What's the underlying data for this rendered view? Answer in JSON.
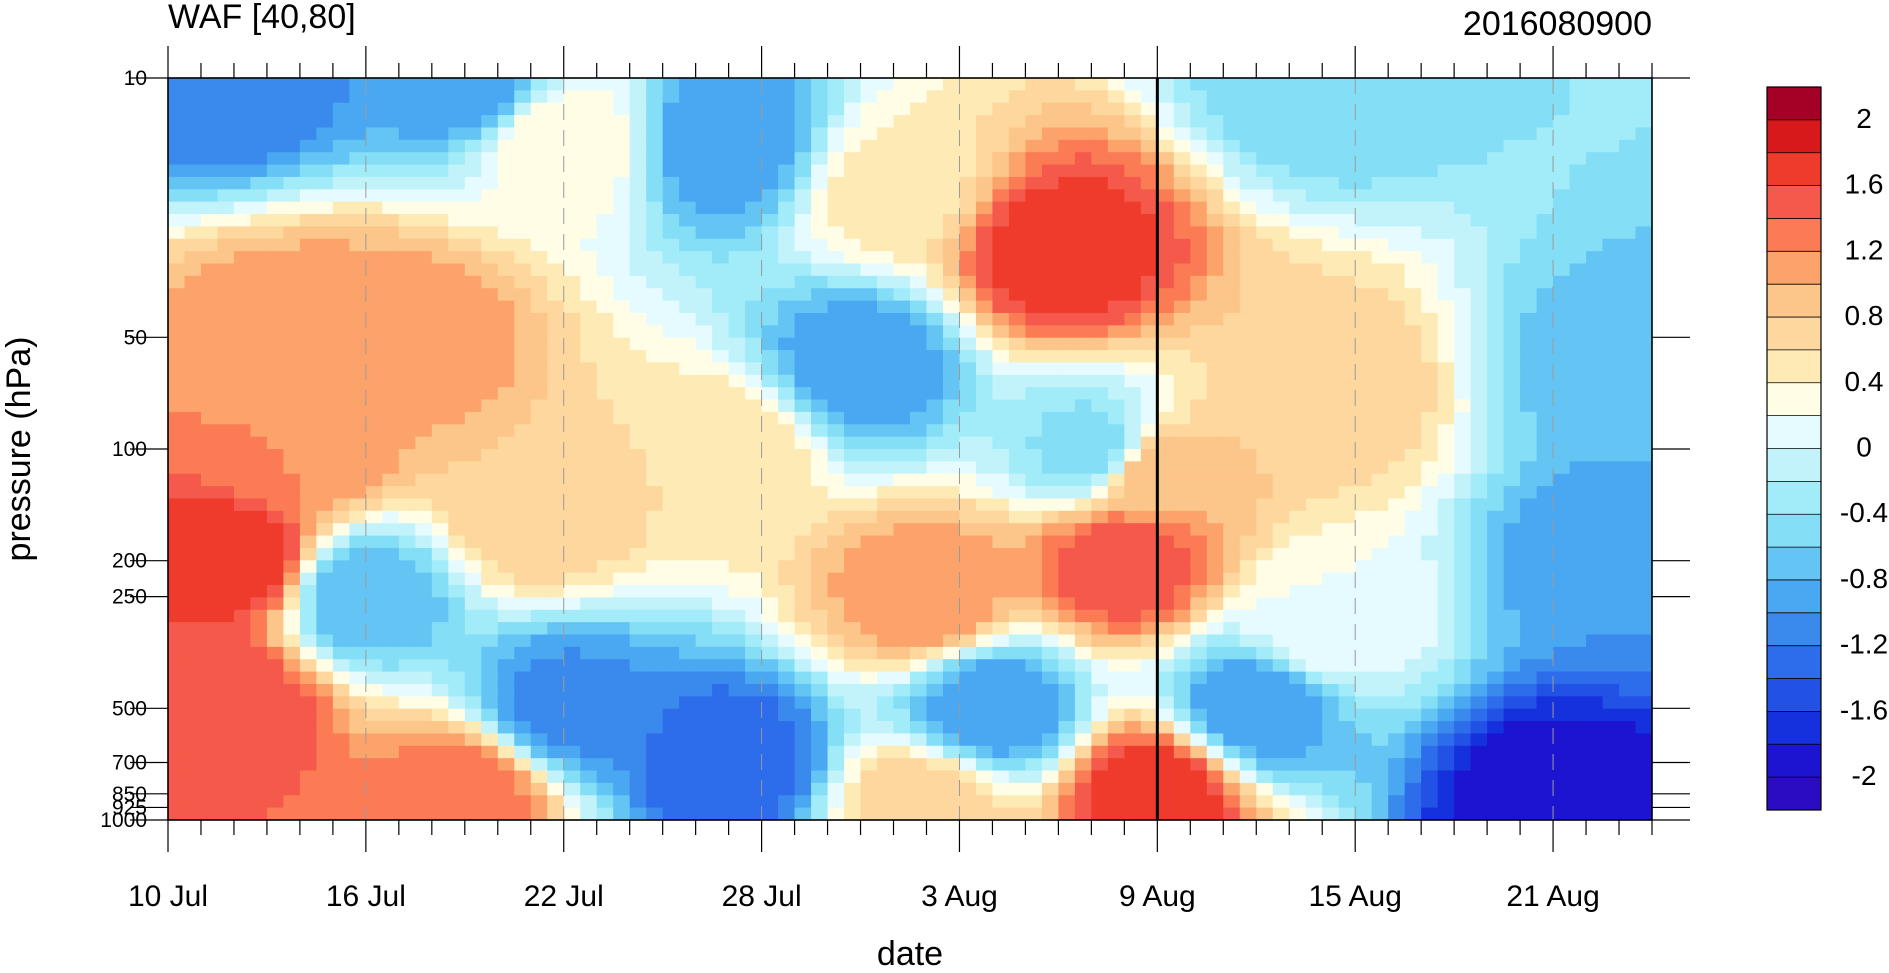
{
  "chart_data": {
    "type": "heatmap",
    "subtype": "filled-contour",
    "title_left": "WAF [40,80]",
    "title_right": "2016080900",
    "xlabel": "date",
    "ylabel": "pressure (hPa)",
    "x_ticks": [
      "10 Jul",
      "16 Jul",
      "22 Jul",
      "28 Jul",
      "3 Aug",
      "9 Aug",
      "15 Aug",
      "21 Aug"
    ],
    "x_tick_days": [
      0,
      6,
      12,
      18,
      24,
      30,
      36,
      42
    ],
    "xlim_days": [
      0,
      45
    ],
    "y_ticks": [
      "10",
      "50",
      "100",
      "200",
      "250",
      "500",
      "700",
      "850",
      "925",
      "1000"
    ],
    "y_tick_values": [
      10,
      50,
      100,
      200,
      250,
      500,
      700,
      850,
      925,
      1000
    ],
    "y_scale": "log-pressure (inverted)",
    "ylim": [
      1000,
      10
    ],
    "reference_line_day": 30,
    "colorbar": {
      "labels": [
        "2",
        "1.6",
        "1.2",
        "0.8",
        "0.4",
        "0",
        "-0.4",
        "-0.8",
        "-1.2",
        "-1.6",
        "-2"
      ],
      "label_values": [
        2,
        1.6,
        1.2,
        0.8,
        0.4,
        0,
        -0.4,
        -0.8,
        -1.2,
        -1.6,
        -2
      ],
      "colors_top_to_bottom": [
        "#a50026",
        "#d7191c",
        "#ef3b2c",
        "#f4594b",
        "#fb7b55",
        "#fca36b",
        "#fcc589",
        "#fdd79d",
        "#feeab5",
        "#fffde6",
        "#e5fbff",
        "#c2f3fb",
        "#a2ebf8",
        "#84def6",
        "#64c5f5",
        "#4aa8f2",
        "#3a8aee",
        "#2d6cea",
        "#2151e5",
        "#1531de",
        "#1d14d2",
        "#2b0cc0"
      ]
    },
    "series": [
      {
        "day": 2,
        "pressure": 200,
        "value": 1.8
      },
      {
        "day": 2,
        "pressure": 500,
        "value": 1.6
      },
      {
        "day": 2,
        "pressure": 10,
        "value": -1.2
      },
      {
        "day": 4,
        "pressure": 50,
        "value": 1.2
      },
      {
        "day": 4,
        "pressure": 100,
        "value": 1.2
      },
      {
        "day": 7,
        "pressure": 50,
        "value": 1.2
      },
      {
        "day": 6,
        "pressure": 250,
        "value": -0.8
      },
      {
        "day": 9,
        "pressure": 10,
        "value": -1.0
      },
      {
        "day": 9,
        "pressure": 850,
        "value": 1.4
      },
      {
        "day": 11,
        "pressure": 150,
        "value": 0.8
      },
      {
        "day": 12,
        "pressure": 500,
        "value": -1.1
      },
      {
        "day": 12,
        "pressure": 15,
        "value": 0.4
      },
      {
        "day": 17,
        "pressure": 700,
        "value": -1.4
      },
      {
        "day": 17,
        "pressure": 15,
        "value": -1.0
      },
      {
        "day": 17,
        "pressure": 100,
        "value": 0.6
      },
      {
        "day": 21,
        "pressure": 60,
        "value": -1.0
      },
      {
        "day": 22,
        "pressure": 20,
        "value": 0.5
      },
      {
        "day": 23,
        "pressure": 250,
        "value": 1.2
      },
      {
        "day": 23,
        "pressure": 925,
        "value": 0.8
      },
      {
        "day": 25,
        "pressure": 500,
        "value": -1.0
      },
      {
        "day": 27,
        "pressure": 30,
        "value": 1.8
      },
      {
        "day": 29,
        "pressure": 200,
        "value": 1.6
      },
      {
        "day": 30,
        "pressure": 850,
        "value": 1.8
      },
      {
        "day": 30,
        "pressure": 120,
        "value": 1.0
      },
      {
        "day": 28,
        "pressure": 100,
        "value": -0.5
      },
      {
        "day": 35,
        "pressure": 70,
        "value": 0.8
      },
      {
        "day": 35,
        "pressure": 300,
        "value": 0.2
      },
      {
        "day": 33,
        "pressure": 500,
        "value": -1.0
      },
      {
        "day": 35,
        "pressure": 10,
        "value": -0.6
      },
      {
        "day": 42,
        "pressure": 900,
        "value": -2.0
      },
      {
        "day": 44,
        "pressure": 200,
        "value": -1.0
      },
      {
        "day": 44,
        "pressure": 60,
        "value": -0.7
      }
    ]
  }
}
